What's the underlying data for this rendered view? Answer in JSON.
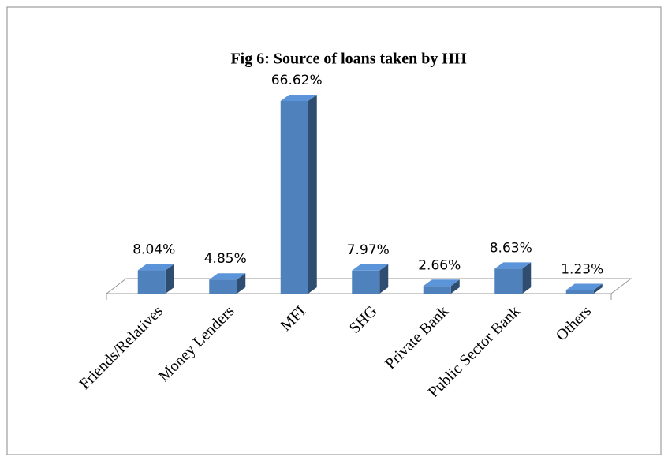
{
  "chart_data": {
    "type": "bar3d",
    "title": "Fig 6: Source of loans taken by HH",
    "categories": [
      "Friends/Relatives",
      "Money Lenders",
      "MFI",
      "SHG",
      "Private Bank",
      "Public Sector Bank",
      "Others"
    ],
    "values": [
      8.04,
      4.85,
      66.62,
      7.97,
      2.66,
      8.63,
      1.23
    ],
    "value_labels": [
      "8.04%",
      "4.85%",
      "66.62%",
      "7.97%",
      "2.66%",
      "8.63%",
      "1.23%"
    ],
    "color": "#4f81bd"
  }
}
